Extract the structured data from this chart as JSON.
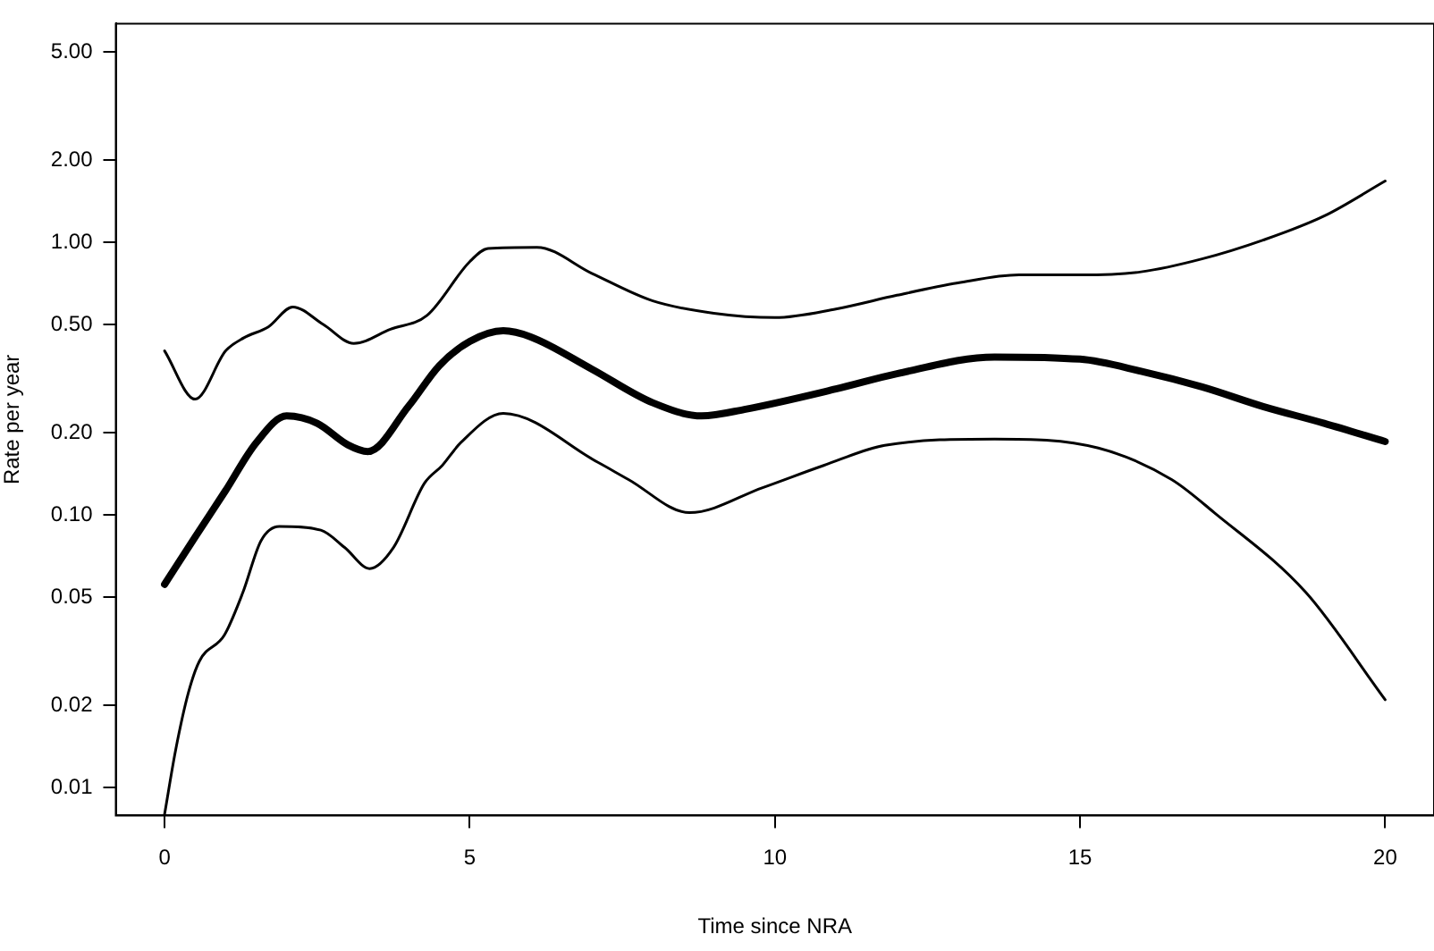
{
  "chart_data": {
    "type": "line",
    "xlabel": "Time since NRA",
    "ylabel": "Rate per year",
    "log": "y",
    "grid": false,
    "legend": false,
    "marker": "none",
    "line_style": "solid",
    "xlim": [
      -0.8,
      20.8
    ],
    "xticks": [
      0,
      5,
      10,
      15,
      20
    ],
    "ylim": [
      0.0079,
      6.35
    ],
    "yticks": [
      {
        "value": 0.01,
        "label": "0.01"
      },
      {
        "value": 0.02,
        "label": "0.02"
      },
      {
        "value": 0.05,
        "label": "0.05"
      },
      {
        "value": 0.1,
        "label": "0.10"
      },
      {
        "value": 0.2,
        "label": "0.20"
      },
      {
        "value": 0.5,
        "label": "0.50"
      },
      {
        "value": 1,
        "label": "1.00"
      },
      {
        "value": 2,
        "label": "2.00"
      },
      {
        "value": 5,
        "label": "5.00"
      }
    ],
    "series": [
      {
        "color": "#000000",
        "x": [
          0,
          0.5,
          1,
          1.3,
          1.7,
          2.1,
          2.6,
          3.1,
          3.7,
          4.3,
          5,
          5.3,
          6.1,
          7,
          8,
          9,
          10,
          11,
          12,
          13,
          14,
          15,
          16,
          17,
          18,
          19,
          20
        ],
        "values": [
          0.4,
          0.266,
          0.4,
          0.447,
          0.49,
          0.58,
          0.5,
          0.426,
          0.48,
          0.54,
          0.85,
          0.95,
          0.96,
          0.77,
          0.61,
          0.55,
          0.53,
          0.57,
          0.64,
          0.71,
          0.76,
          0.76,
          0.78,
          0.87,
          1.02,
          1.25,
          1.68
        ]
      },
      {
        "color": "#000000",
        "x": [
          0,
          0.5,
          1,
          1.5,
          2,
          2.5,
          3,
          3.33,
          4,
          4.5,
          5,
          5.55,
          6,
          7,
          8,
          8.8,
          9.5,
          11,
          12,
          13.6,
          15,
          16,
          17,
          18,
          19,
          20
        ],
        "values": [
          0.0557,
          0.083,
          0.123,
          0.184,
          0.231,
          0.217,
          0.181,
          0.171,
          0.251,
          0.353,
          0.433,
          0.474,
          0.45,
          0.343,
          0.258,
          0.231,
          0.244,
          0.29,
          0.33,
          0.38,
          0.373,
          0.337,
          0.295,
          0.25,
          0.217,
          0.186
        ]
      },
      {
        "color": "#000000",
        "x": [
          0,
          0.18,
          0.39,
          0.57,
          0.98,
          1.28,
          1.58,
          1.88,
          2.56,
          2.95,
          3.36,
          3.75,
          4.26,
          4.55,
          4.85,
          5.55,
          7.1,
          7.6,
          8.6,
          9.8,
          10.8,
          11.8,
          13.6,
          15.3,
          16.5,
          17.2,
          18.7,
          20
        ],
        "values": [
          0.008,
          0.0137,
          0.0223,
          0.0291,
          0.0363,
          0.0518,
          0.0805,
          0.0908,
          0.088,
          0.076,
          0.0636,
          0.076,
          0.131,
          0.152,
          0.184,
          0.236,
          0.156,
          0.135,
          0.102,
          0.126,
          0.152,
          0.18,
          0.19,
          0.176,
          0.135,
          0.102,
          0.052,
          0.021
        ]
      }
    ]
  }
}
